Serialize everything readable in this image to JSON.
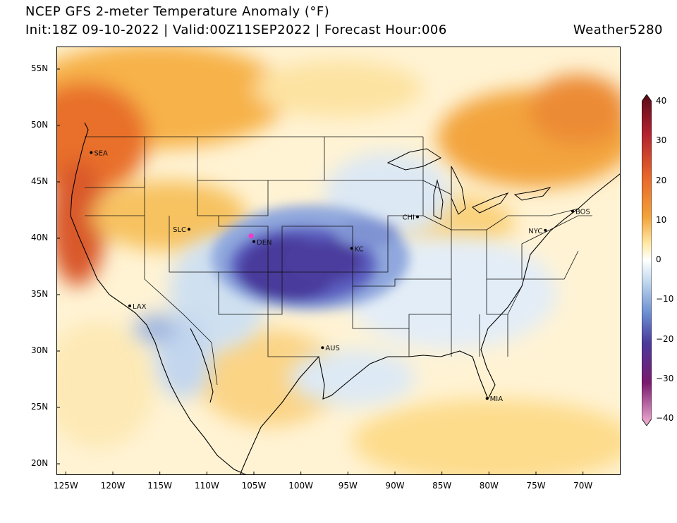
{
  "header": {
    "title": "NCEP GFS 2-meter Temperature Anomaly (°F)",
    "subtitle": "Init:18Z 09-10-2022 | Valid:00Z11SEP2022 | Forecast Hour:006",
    "brand": "Weather5280"
  },
  "map": {
    "lon_range": [
      -126,
      -66
    ],
    "lat_range": [
      19,
      57
    ],
    "lat_ticks": [
      "55N",
      "50N",
      "45N",
      "40N",
      "35N",
      "30N",
      "25N",
      "20N"
    ],
    "lon_ticks": [
      "125W",
      "120W",
      "115W",
      "110W",
      "105W",
      "100W",
      "95W",
      "90W",
      "85W",
      "80W",
      "75W",
      "70W"
    ],
    "cities": [
      {
        "code": "SEA",
        "lon": -122.3,
        "lat": 47.6
      },
      {
        "code": "SLC",
        "lon": -111.9,
        "lat": 40.8
      },
      {
        "code": "DEN",
        "lon": -105.0,
        "lat": 39.7
      },
      {
        "code": "KC",
        "lon": -94.6,
        "lat": 39.1
      },
      {
        "code": "CHI",
        "lon": -87.6,
        "lat": 41.9
      },
      {
        "code": "NYC",
        "lon": -74.0,
        "lat": 40.7
      },
      {
        "code": "BOS",
        "lon": -71.1,
        "lat": 42.4
      },
      {
        "code": "LAX",
        "lon": -118.2,
        "lat": 34.0
      },
      {
        "code": "AUS",
        "lon": -97.7,
        "lat": 30.3
      },
      {
        "code": "MIA",
        "lon": -80.2,
        "lat": 25.8
      }
    ],
    "highlight_point": {
      "lon": -105.3,
      "lat": 40.2,
      "color": "#ff33cc"
    }
  },
  "colorbar": {
    "min": -40,
    "max": 40,
    "tick_labels": [
      "40",
      "30",
      "20",
      "10",
      "0",
      "−10",
      "−20",
      "−30",
      "−40"
    ],
    "tick_values": [
      40,
      30,
      20,
      10,
      0,
      -10,
      -20,
      -30,
      -40
    ],
    "colors": {
      "extreme_warm": "#5a0a18",
      "very_warm": "#c0272d",
      "warm": "#f2a33a",
      "mild_warm": "#ffe9a6",
      "neutral": "#ffffff",
      "mild_cool": "#c7dcef",
      "cool": "#6b8fd1",
      "cold": "#4a3a9c",
      "very_cold": "#7a1a6e",
      "extreme_cold": "#f2b3d4"
    }
  }
}
